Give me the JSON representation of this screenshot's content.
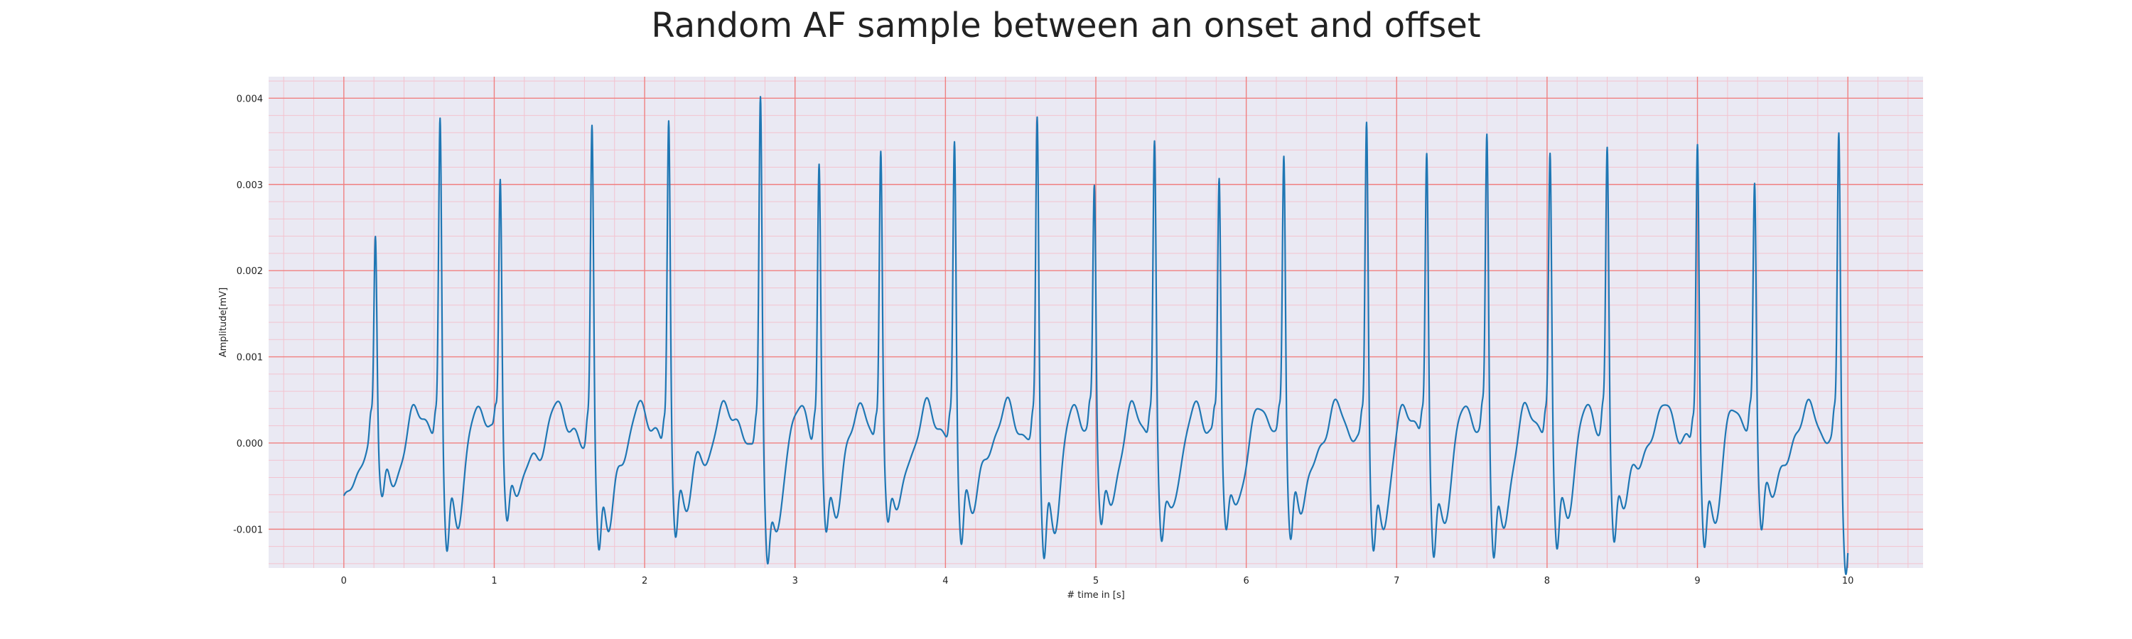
{
  "chart_data": {
    "type": "line",
    "title": "Random AF sample between an onset and offset",
    "xlabel": "# time in [s]",
    "ylabel": "Amplitude[mV]",
    "xlim": [
      -0.5,
      10.5
    ],
    "ylim": [
      -0.00145,
      0.00425
    ],
    "x_ticks": [
      0,
      1,
      2,
      3,
      4,
      5,
      6,
      7,
      8,
      9,
      10
    ],
    "x_tick_labels": [
      "0",
      "1",
      "2",
      "3",
      "4",
      "5",
      "6",
      "7",
      "8",
      "9",
      "10"
    ],
    "y_ticks": [
      -0.001,
      0.0,
      0.001,
      0.002,
      0.003,
      0.004
    ],
    "y_tick_labels": [
      "-0.001",
      "0.000",
      "0.001",
      "0.002",
      "0.003",
      "0.004"
    ],
    "grid": "major and minor (ECG paper)",
    "legend": "none",
    "colors": {
      "line": "#1f77b4",
      "plot_background": "#eae9f3",
      "major_grid": "#f08080",
      "minor_grid": "#f3c3cf"
    },
    "series": [
      {
        "start_x": 0.0,
        "end_x": 10.0,
        "beats": [
          {
            "t": 0.21,
            "peak": 0.00245,
            "trough": -0.0005
          },
          {
            "t": 0.64,
            "peak": 0.0038,
            "trough": -0.00105
          },
          {
            "t": 1.04,
            "peak": 0.00313,
            "trough": -0.0008
          },
          {
            "t": 1.65,
            "peak": 0.0037,
            "trough": -0.00112
          },
          {
            "t": 2.16,
            "peak": 0.00378,
            "trough": -0.00095
          },
          {
            "t": 2.77,
            "peak": 0.004,
            "trough": -0.00118
          },
          {
            "t": 3.16,
            "peak": 0.00317,
            "trough": -0.00088
          },
          {
            "t": 3.57,
            "peak": 0.0034,
            "trough": -0.00085
          },
          {
            "t": 4.06,
            "peak": 0.00352,
            "trough": -0.00098
          },
          {
            "t": 4.61,
            "peak": 0.00383,
            "trough": -0.00112
          },
          {
            "t": 4.99,
            "peak": 0.00298,
            "trough": -0.00078
          },
          {
            "t": 5.39,
            "peak": 0.00345,
            "trough": -0.00092
          },
          {
            "t": 5.82,
            "peak": 0.00311,
            "trough": -0.00085
          },
          {
            "t": 6.25,
            "peak": 0.0034,
            "trough": -0.00098
          },
          {
            "t": 6.8,
            "peak": 0.00383,
            "trough": -0.0011
          },
          {
            "t": 7.2,
            "peak": 0.00336,
            "trough": -0.00108
          },
          {
            "t": 7.6,
            "peak": 0.0036,
            "trough": -0.00112
          },
          {
            "t": 8.02,
            "peak": 0.00335,
            "trough": -0.00098
          },
          {
            "t": 8.4,
            "peak": 0.00336,
            "trough": -0.00095
          },
          {
            "t": 9.0,
            "peak": 0.00352,
            "trough": -0.00102
          },
          {
            "t": 9.38,
            "peak": 0.00296,
            "trough": -0.0008
          },
          {
            "t": 9.94,
            "peak": 0.0037,
            "trough": -0.00103
          }
        ]
      }
    ]
  }
}
